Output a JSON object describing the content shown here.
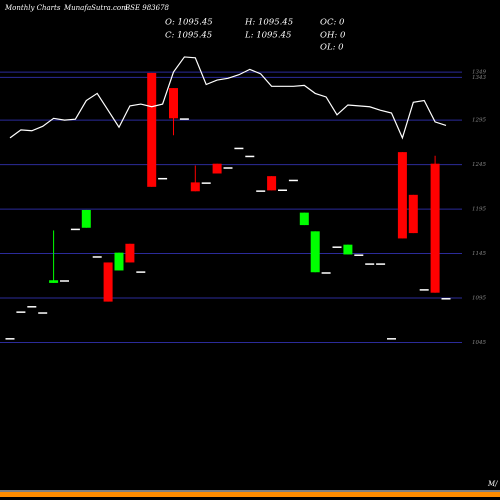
{
  "chart_data": {
    "type": "candlestick",
    "header": {
      "site_label": "Monthly Charts",
      "site": "MunafaSutra.com",
      "symbol": "BSE 983678",
      "stats": [
        [
          "O: 1095.45",
          "H: 1095.45",
          "OC: 0"
        ],
        [
          "C: 1095.45",
          "L: 1095.45",
          "OH: 0"
        ],
        [
          "",
          "",
          "OL: 0"
        ]
      ]
    },
    "footer": "M/",
    "ylim": [
      868,
      1430
    ],
    "yticks": [
      1349,
      1343,
      1295,
      1245,
      1195,
      1145,
      1095,
      1045
    ],
    "grid": true,
    "colors": {
      "up": "#00ff00",
      "down": "#ff0000",
      "flat": "#ffffff",
      "line": "#ffffff",
      "grid": "#2b2b9a"
    },
    "open": [
      1050,
      1080,
      1086,
      1079,
      1112,
      1115,
      1173,
      1174,
      1142,
      1135,
      1126,
      1156,
      1125,
      1348,
      1230,
      1331,
      1297,
      1225,
      1225,
      1246,
      1242,
      1264,
      1255,
      1216,
      1232,
      1217,
      1228,
      1177,
      1124,
      1124,
      1153,
      1144,
      1144,
      1134,
      1134,
      1050,
      1259,
      1211,
      1105,
      1246,
      1095
    ],
    "high": [
      1050,
      1080,
      1086,
      1079,
      1171,
      1115,
      1173,
      1194,
      1142,
      1135,
      1146,
      1156,
      1125,
      1348,
      1230,
      1331,
      1297,
      1244,
      1225,
      1246,
      1242,
      1264,
      1255,
      1216,
      1232,
      1217,
      1228,
      1191,
      1170,
      1124,
      1153,
      1155,
      1144,
      1134,
      1134,
      1050,
      1259,
      1211,
      1105,
      1255,
      1095
    ],
    "low": [
      1050,
      1080,
      1086,
      1079,
      1112,
      1115,
      1173,
      1174,
      1142,
      1091,
      1126,
      1135,
      1125,
      1220,
      1230,
      1278,
      1297,
      1215,
      1225,
      1235,
      1242,
      1264,
      1255,
      1216,
      1216,
      1217,
      1228,
      1177,
      1124,
      1124,
      1153,
      1144,
      1144,
      1134,
      1134,
      1050,
      1162,
      1168,
      1105,
      1101,
      1095
    ],
    "close": [
      1050,
      1080,
      1086,
      1079,
      1115,
      1115,
      1173,
      1194,
      1142,
      1091,
      1146,
      1135,
      1125,
      1220,
      1230,
      1297,
      1297,
      1215,
      1225,
      1235,
      1242,
      1264,
      1255,
      1216,
      1216,
      1217,
      1228,
      1191,
      1170,
      1124,
      1153,
      1155,
      1144,
      1134,
      1134,
      1050,
      1162,
      1168,
      1105,
      1101,
      1095
    ],
    "line": [
      1275,
      1284,
      1283,
      1288,
      1297,
      1295,
      1296,
      1317,
      1325,
      1306,
      1287,
      1311,
      1313,
      1310,
      1313,
      1349,
      1366,
      1365,
      1335,
      1340,
      1342,
      1346,
      1352,
      1347,
      1333,
      1333,
      1333,
      1334,
      1325,
      1321,
      1301,
      1312,
      1311,
      1310,
      1306,
      1303,
      1275,
      1315,
      1317,
      1293,
      1289
    ]
  }
}
